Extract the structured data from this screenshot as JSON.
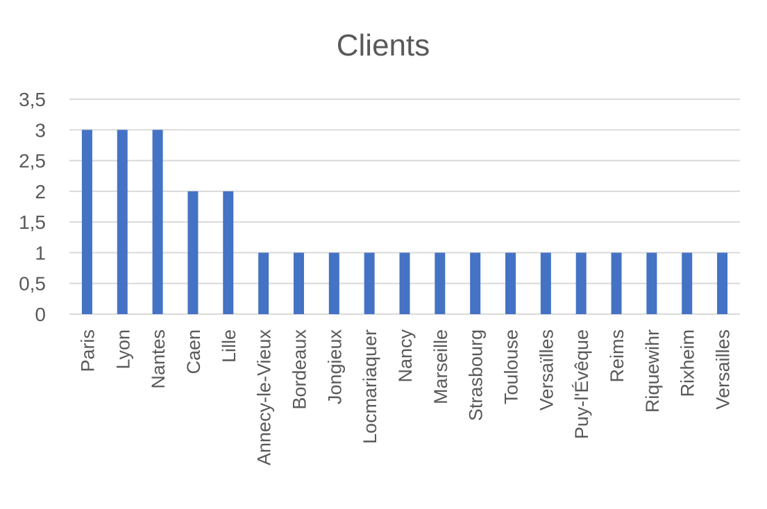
{
  "chart_data": {
    "type": "bar",
    "title": "Clients",
    "xlabel": "",
    "ylabel": "",
    "categories": [
      "Paris",
      "Lyon",
      "Nantes",
      "Caen",
      "Lille",
      "Annecy-le-Vieux",
      "Bordeaux",
      "Jongieux",
      "Locmariaquer",
      "Nancy",
      "Marseille",
      "Strasbourg",
      "Toulouse",
      "Versaïlles",
      "Puy-l'Évêque",
      "Reims",
      "Riquewihr",
      "Rixheim",
      "Versailles"
    ],
    "values": [
      3,
      3,
      3,
      2,
      2,
      1,
      1,
      1,
      1,
      1,
      1,
      1,
      1,
      1,
      1,
      1,
      1,
      1,
      1
    ],
    "ylim": [
      0,
      3.5
    ],
    "yticks": [
      0,
      0.5,
      1,
      1.5,
      2,
      2.5,
      3,
      3.5
    ],
    "ytick_labels": [
      "0",
      "0,5",
      "1",
      "1,5",
      "2",
      "2,5",
      "3",
      "3,5"
    ],
    "grid": true,
    "legend": "none",
    "bar_color": "#4472c4"
  }
}
